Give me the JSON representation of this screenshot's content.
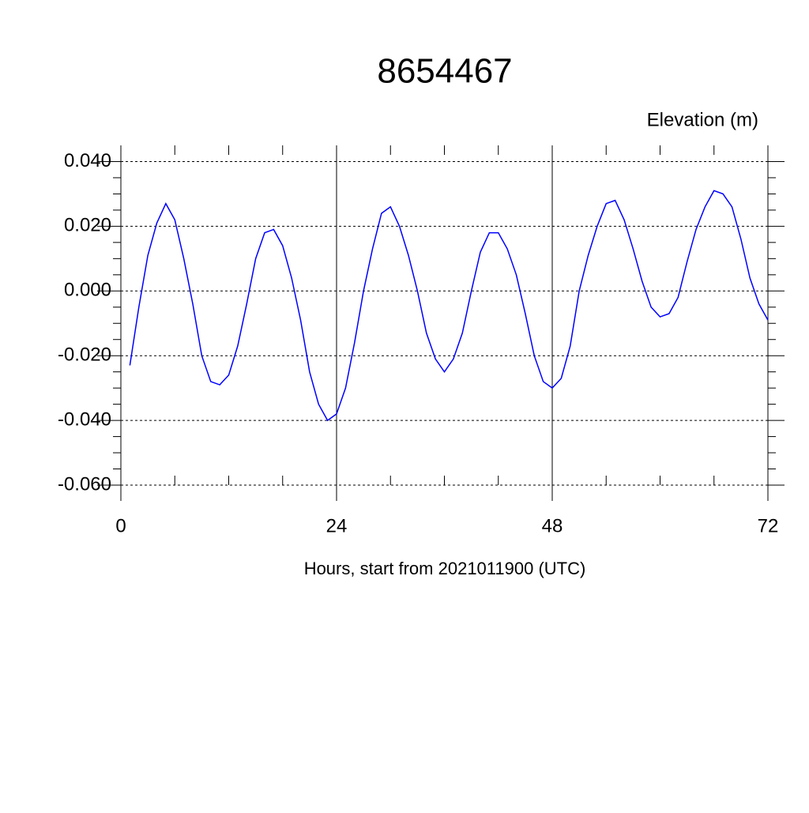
{
  "chart_data": {
    "type": "line",
    "title": "8654467",
    "y_label": "Elevation (m)",
    "x_label": "Hours, start from 2021011900 (UTC)",
    "x": [
      1,
      2,
      3,
      4,
      5,
      6,
      7,
      8,
      9,
      10,
      11,
      12,
      13,
      14,
      15,
      16,
      17,
      18,
      19,
      20,
      21,
      22,
      23,
      24,
      25,
      26,
      27,
      28,
      29,
      30,
      31,
      32,
      33,
      34,
      35,
      36,
      37,
      38,
      39,
      40,
      41,
      42,
      43,
      44,
      45,
      46,
      47,
      48,
      49,
      50,
      51,
      52,
      53,
      54,
      55,
      56,
      57,
      58,
      59,
      60,
      61,
      62,
      63,
      64,
      65,
      66,
      67,
      68,
      69,
      70,
      71,
      72
    ],
    "series": [
      {
        "name": "Elevation",
        "color": "#0000ff",
        "values": [
          -0.023,
          -0.005,
          0.011,
          0.021,
          0.027,
          0.022,
          0.01,
          -0.004,
          -0.02,
          -0.028,
          -0.029,
          -0.026,
          -0.017,
          -0.004,
          0.01,
          0.018,
          0.019,
          0.014,
          0.004,
          -0.009,
          -0.025,
          -0.035,
          -0.04,
          -0.038,
          -0.03,
          -0.016,
          0.0,
          0.013,
          0.024,
          0.026,
          0.02,
          0.011,
          0.0,
          -0.013,
          -0.021,
          -0.025,
          -0.021,
          -0.013,
          0.0,
          0.012,
          0.018,
          0.018,
          0.013,
          0.005,
          -0.007,
          -0.02,
          -0.028,
          -0.03,
          -0.027,
          -0.017,
          0.0,
          0.011,
          0.02,
          0.027,
          0.028,
          0.022,
          0.013,
          0.003,
          -0.005,
          -0.008,
          -0.007,
          -0.002,
          0.009,
          0.019,
          0.026,
          0.031,
          0.03,
          0.026,
          0.016,
          0.004,
          -0.004,
          -0.009
        ]
      }
    ],
    "xlim": [
      0,
      72
    ],
    "xticks": [
      0,
      24,
      48,
      72
    ],
    "ylim": [
      -0.06,
      0.045
    ],
    "yticks": [
      {
        "value": -0.06,
        "label": "-0.060"
      },
      {
        "value": -0.04,
        "label": "-0.040"
      },
      {
        "value": -0.02,
        "label": "-0.020"
      },
      {
        "value": 0,
        "label": "0.000"
      },
      {
        "value": 0.02,
        "label": "0.020"
      },
      {
        "value": 0.04,
        "label": "0.040"
      }
    ],
    "grid": true
  }
}
